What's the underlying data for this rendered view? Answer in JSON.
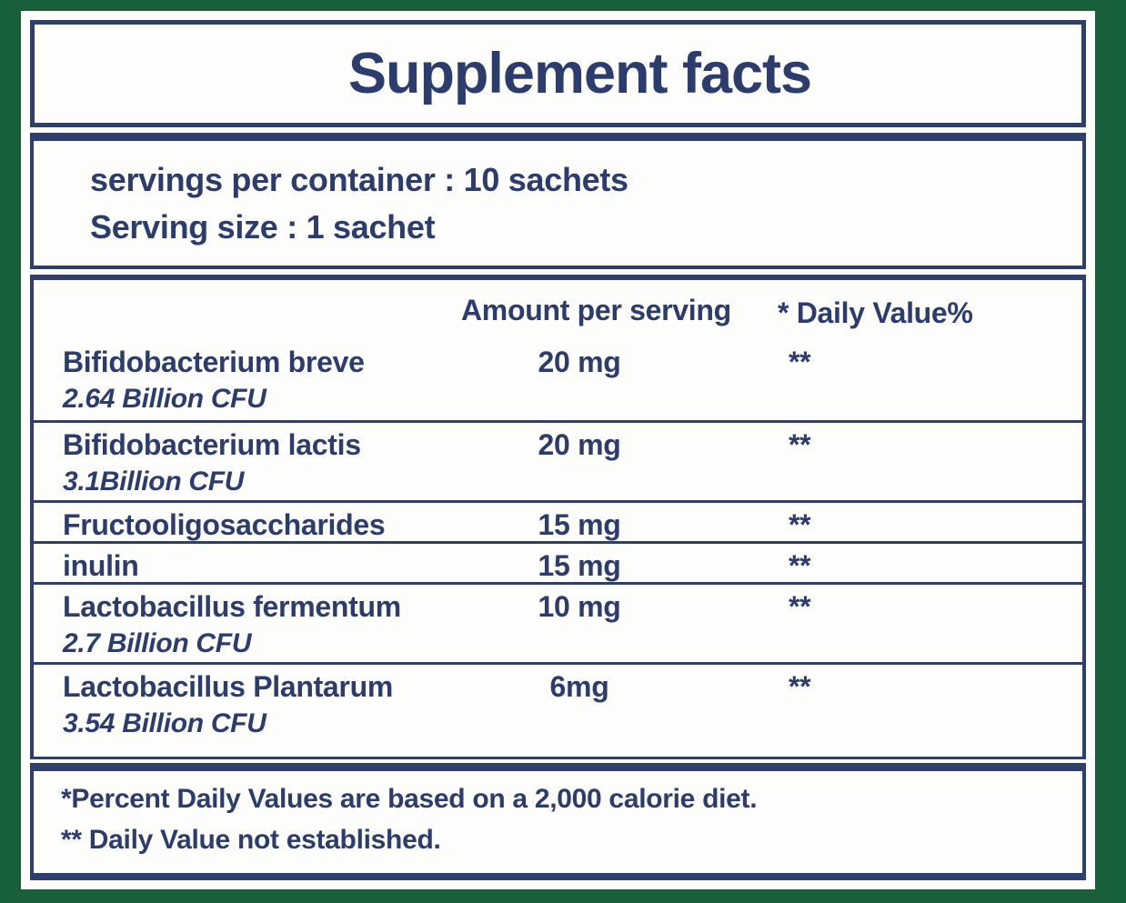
{
  "panel": {
    "title": "Supplement facts",
    "serving_info": {
      "line1": "servings per container : 10 sachets",
      "line2": "Serving size : 1 sachet"
    },
    "table": {
      "headers": {
        "amount": "Amount per serving",
        "daily_value": "* Daily Value%"
      },
      "rows": [
        {
          "name": "Bifidobacterium breve",
          "cfu": "2.64 Billion CFU",
          "amount": "20 mg",
          "daily_value": "**"
        },
        {
          "name": "Bifidobacterium lactis",
          "cfu": "3.1Billion CFU",
          "amount": "20 mg",
          "daily_value": "**"
        },
        {
          "name": "Fructooligosaccharides",
          "cfu": "",
          "amount": "15 mg",
          "daily_value": "**"
        },
        {
          "name": "inulin",
          "cfu": "",
          "amount": "15 mg",
          "daily_value": "**"
        },
        {
          "name": "Lactobacillus fermentum",
          "cfu": "2.7 Billion CFU",
          "amount": "10 mg",
          "daily_value": "**"
        },
        {
          "name": "Lactobacillus Plantarum",
          "cfu": "3.54 Billion CFU",
          "amount": "6mg",
          "daily_value": "**"
        }
      ]
    },
    "footnotes": {
      "line1": "*Percent Daily Values are based on a 2,000 calorie diet.",
      "line2": "** Daily Value not established."
    },
    "colors": {
      "background_green": "#18603A",
      "navy_border": "#2E3F6E",
      "navy_text": "#2B3C6D",
      "panel_white": "#FCFCFA"
    }
  }
}
